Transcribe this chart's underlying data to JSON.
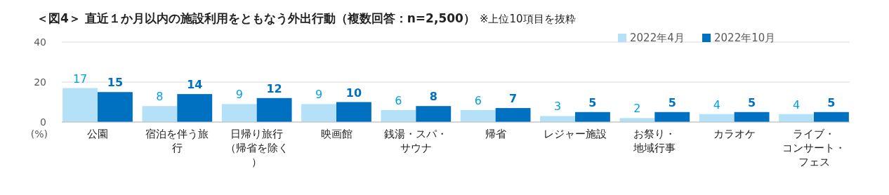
{
  "chart_data": {
    "type": "bar",
    "title": "＜図4＞ 直近１か月以内の施設利用をともなう外出行動（複数回答：n=2,500）",
    "subtitle": "※上位10項目を抜粋",
    "ylabel": "(%)",
    "categories": [
      "公園",
      "宿泊を伴う旅行",
      "日帰り旅行（帰省を除く）",
      "映画館",
      "銭湯・スパ・サウナ",
      "帰省",
      "レジャー施設",
      "お祭り・地域行事",
      "カラオケ",
      "ライブ・コンサート・フェス"
    ],
    "series": [
      {
        "name": "2022年4月",
        "color": "#b4e1f7",
        "values": [
          17,
          8,
          9,
          9,
          6,
          6,
          3,
          2,
          4,
          4
        ]
      },
      {
        "name": "2022年10月",
        "color": "#0070c0",
        "values": [
          15,
          14,
          12,
          10,
          8,
          7,
          5,
          5,
          5,
          5
        ]
      }
    ],
    "ylim": [
      0,
      40
    ],
    "yticks": [
      0,
      20,
      40
    ],
    "grid": "y",
    "legend": "top right",
    "data_labels": true
  }
}
